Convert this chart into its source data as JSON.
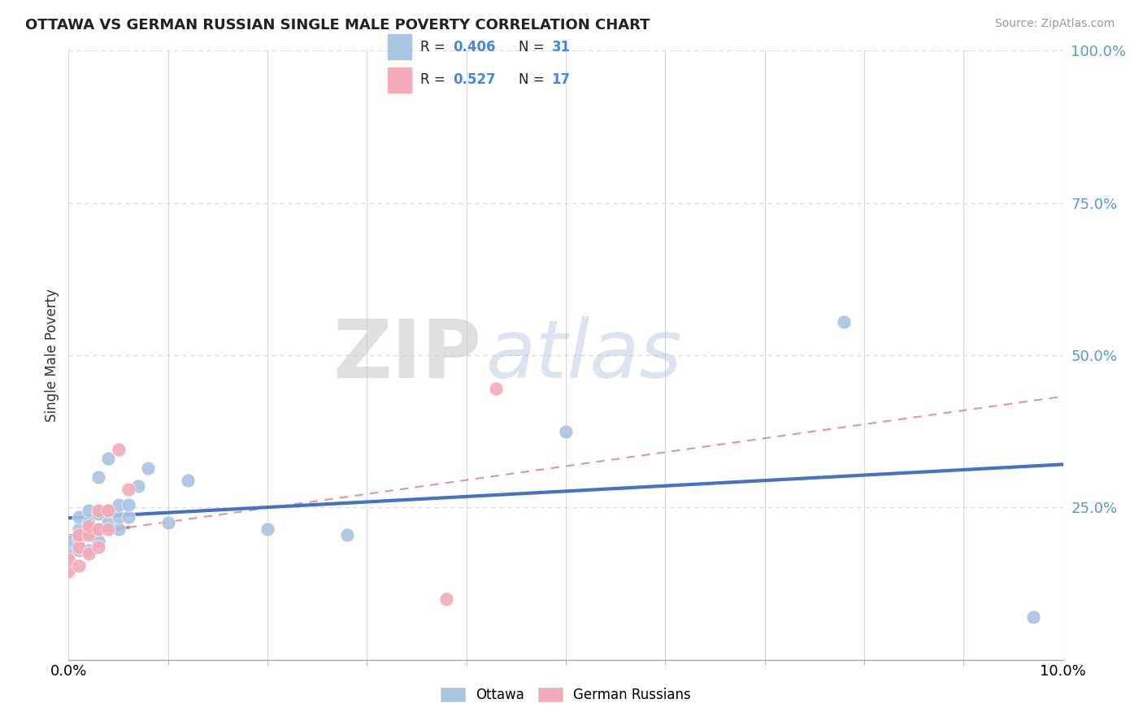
{
  "title": "OTTAWA VS GERMAN RUSSIAN SINGLE MALE POVERTY CORRELATION CHART",
  "source": "Source: ZipAtlas.com",
  "ylabel": "Single Male Poverty",
  "xlim": [
    0,
    0.1
  ],
  "ylim": [
    0,
    1.0
  ],
  "ytick_vals": [
    0.25,
    0.5,
    0.75,
    1.0
  ],
  "ytick_labels": [
    "25.0%",
    "50.0%",
    "75.0%",
    "100.0%"
  ],
  "xtick_vals": [
    0.0,
    0.1
  ],
  "xtick_labels": [
    "0.0%",
    "10.0%"
  ],
  "ottawa_color": "#aac4e4",
  "german_color": "#f4aab8",
  "ottawa_line_color": "#4472c4",
  "german_line_color": "#e06080",
  "watermark_zip": "ZIP",
  "watermark_atlas": "atlas",
  "background_color": "#ffffff",
  "grid_color": "#d8d8d8",
  "legend_blue_label": "R = 0.406   N = 31",
  "legend_pink_label": "R = 0.527   N = 17",
  "bottom_legend_ottawa": "Ottawa",
  "bottom_legend_german": "German Russians",
  "ottawa_x": [
    0.0,
    0.0,
    0.001,
    0.001,
    0.001,
    0.001,
    0.002,
    0.002,
    0.002,
    0.002,
    0.003,
    0.003,
    0.003,
    0.003,
    0.004,
    0.004,
    0.004,
    0.005,
    0.005,
    0.005,
    0.006,
    0.006,
    0.007,
    0.008,
    0.01,
    0.012,
    0.02,
    0.028,
    0.05,
    0.078,
    0.097
  ],
  "ottawa_y": [
    0.175,
    0.195,
    0.18,
    0.2,
    0.215,
    0.235,
    0.18,
    0.21,
    0.225,
    0.245,
    0.195,
    0.215,
    0.24,
    0.3,
    0.225,
    0.245,
    0.33,
    0.215,
    0.235,
    0.255,
    0.235,
    0.255,
    0.285,
    0.315,
    0.225,
    0.295,
    0.215,
    0.205,
    0.375,
    0.555,
    0.07
  ],
  "german_x": [
    0.0,
    0.0,
    0.001,
    0.001,
    0.001,
    0.002,
    0.002,
    0.002,
    0.003,
    0.003,
    0.003,
    0.004,
    0.004,
    0.005,
    0.006,
    0.038,
    0.043
  ],
  "german_y": [
    0.145,
    0.165,
    0.155,
    0.185,
    0.205,
    0.175,
    0.205,
    0.22,
    0.185,
    0.215,
    0.245,
    0.215,
    0.245,
    0.345,
    0.28,
    0.1,
    0.445
  ]
}
